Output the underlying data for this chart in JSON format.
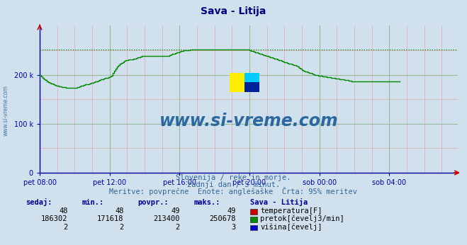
{
  "title": "Sava - Litija",
  "title_color": "#000080",
  "bg_color": "#d0e0ec",
  "plot_bg_color": "#d0e0ec",
  "flow_color": "#008800",
  "temp_color": "#cc0000",
  "height_color": "#0000cc",
  "axis_color": "#0000aa",
  "watermark": "www.si-vreme.com",
  "watermark_color": "#1a5c99",
  "logo_yellow": "#ffee00",
  "logo_cyan": "#00ccff",
  "logo_blue": "#002299",
  "grid_minor_color": "#ddaaaa",
  "grid_major_color": "#99bb99",
  "ylim": [
    0,
    300000
  ],
  "xlim_max": 287,
  "ytick_positions": [
    0,
    100000,
    200000
  ],
  "ytick_labels": [
    "0",
    "100 k",
    "200 k"
  ],
  "xtick_positions": [
    0,
    48,
    96,
    144,
    192,
    240
  ],
  "xtick_labels": [
    "pet 08:00",
    "pet 12:00",
    "pet 16:00",
    "pet 20:00",
    "sob 00:00",
    "sob 04:00"
  ],
  "max_line_value": 250678,
  "sub_text1": "Slovenija / reke in morje.",
  "sub_text2": "zadnji dan / 5 minut.",
  "sub_text3": "Meritve: povprečne  Enote: anglešaške  Črta: 95% meritev",
  "table_headers": [
    "sedaj:",
    "min.:",
    "povpr.:",
    "maks.:",
    "Sava - Litija"
  ],
  "table_row1": [
    "48",
    "48",
    "49",
    "49",
    "temperatura[F]"
  ],
  "table_row2": [
    "186302",
    "171618",
    "213400",
    "250678",
    "pretok[čevelj3/min]"
  ],
  "table_row3": [
    "2",
    "2",
    "2",
    "3",
    "višina[čevelj]"
  ],
  "flow_data": [
    200000,
    197000,
    194000,
    191000,
    189000,
    187000,
    185000,
    183000,
    182000,
    181000,
    179000,
    178000,
    177000,
    176000,
    176000,
    175000,
    175000,
    175000,
    174000,
    174000,
    174000,
    174000,
    174000,
    174000,
    174000,
    174000,
    175000,
    176000,
    177000,
    178000,
    179000,
    180000,
    180000,
    181000,
    182000,
    183000,
    184000,
    185000,
    186000,
    187000,
    188000,
    189000,
    190000,
    191000,
    192000,
    193000,
    194000,
    195000,
    196000,
    198000,
    203000,
    208000,
    213000,
    217000,
    220000,
    222000,
    224000,
    226000,
    228000,
    229000,
    230000,
    231000,
    231000,
    231000,
    232000,
    233000,
    234000,
    235000,
    236000,
    237000,
    238000,
    239000,
    239000,
    239000,
    239000,
    239000,
    239000,
    239000,
    239000,
    239000,
    239000,
    239000,
    239000,
    239000,
    239000,
    239000,
    239000,
    239000,
    239000,
    240000,
    241000,
    242000,
    243000,
    244000,
    245000,
    246000,
    247000,
    248000,
    249000,
    249500,
    250000,
    250300,
    250500,
    250678,
    250678,
    250678,
    250678,
    250678,
    250678,
    250678,
    250678,
    250678,
    250678,
    250678,
    250678,
    250678,
    250678,
    250678,
    250678,
    250678,
    250678,
    250678,
    250678,
    250678,
    250678,
    250678,
    250678,
    250678,
    250678,
    250678,
    250678,
    250678,
    250678,
    250678,
    250678,
    250678,
    250678,
    250678,
    250678,
    250678,
    250678,
    250678,
    250678,
    250678,
    250000,
    249000,
    248000,
    247000,
    246000,
    245000,
    244000,
    243000,
    242000,
    241000,
    240000,
    239000,
    238000,
    237000,
    236000,
    235000,
    234000,
    233000,
    232000,
    231000,
    230000,
    229000,
    228000,
    227000,
    226000,
    225000,
    224000,
    223000,
    222000,
    221000,
    220000,
    219000,
    218000,
    216000,
    214000,
    212000,
    210000,
    208000,
    207000,
    206000,
    205000,
    204000,
    203000,
    202000,
    201000,
    200000,
    199000,
    198500,
    198000,
    197500,
    197000,
    196500,
    196000,
    195500,
    195000,
    194500,
    194000,
    193500,
    193000,
    192500,
    192000,
    191500,
    191000,
    190500,
    190000,
    189500,
    189000,
    188500,
    188000,
    187500,
    187000,
    186500,
    186302,
    186302,
    186302,
    186302,
    186302,
    186302,
    186302,
    186302,
    186302,
    186302,
    186302,
    186302,
    186302,
    186302,
    186302,
    186302,
    186302,
    186302,
    186302,
    186302,
    186302,
    186302,
    186302,
    186302,
    186302,
    186302,
    186302,
    186302,
    186302,
    186302,
    186302,
    186302
  ]
}
